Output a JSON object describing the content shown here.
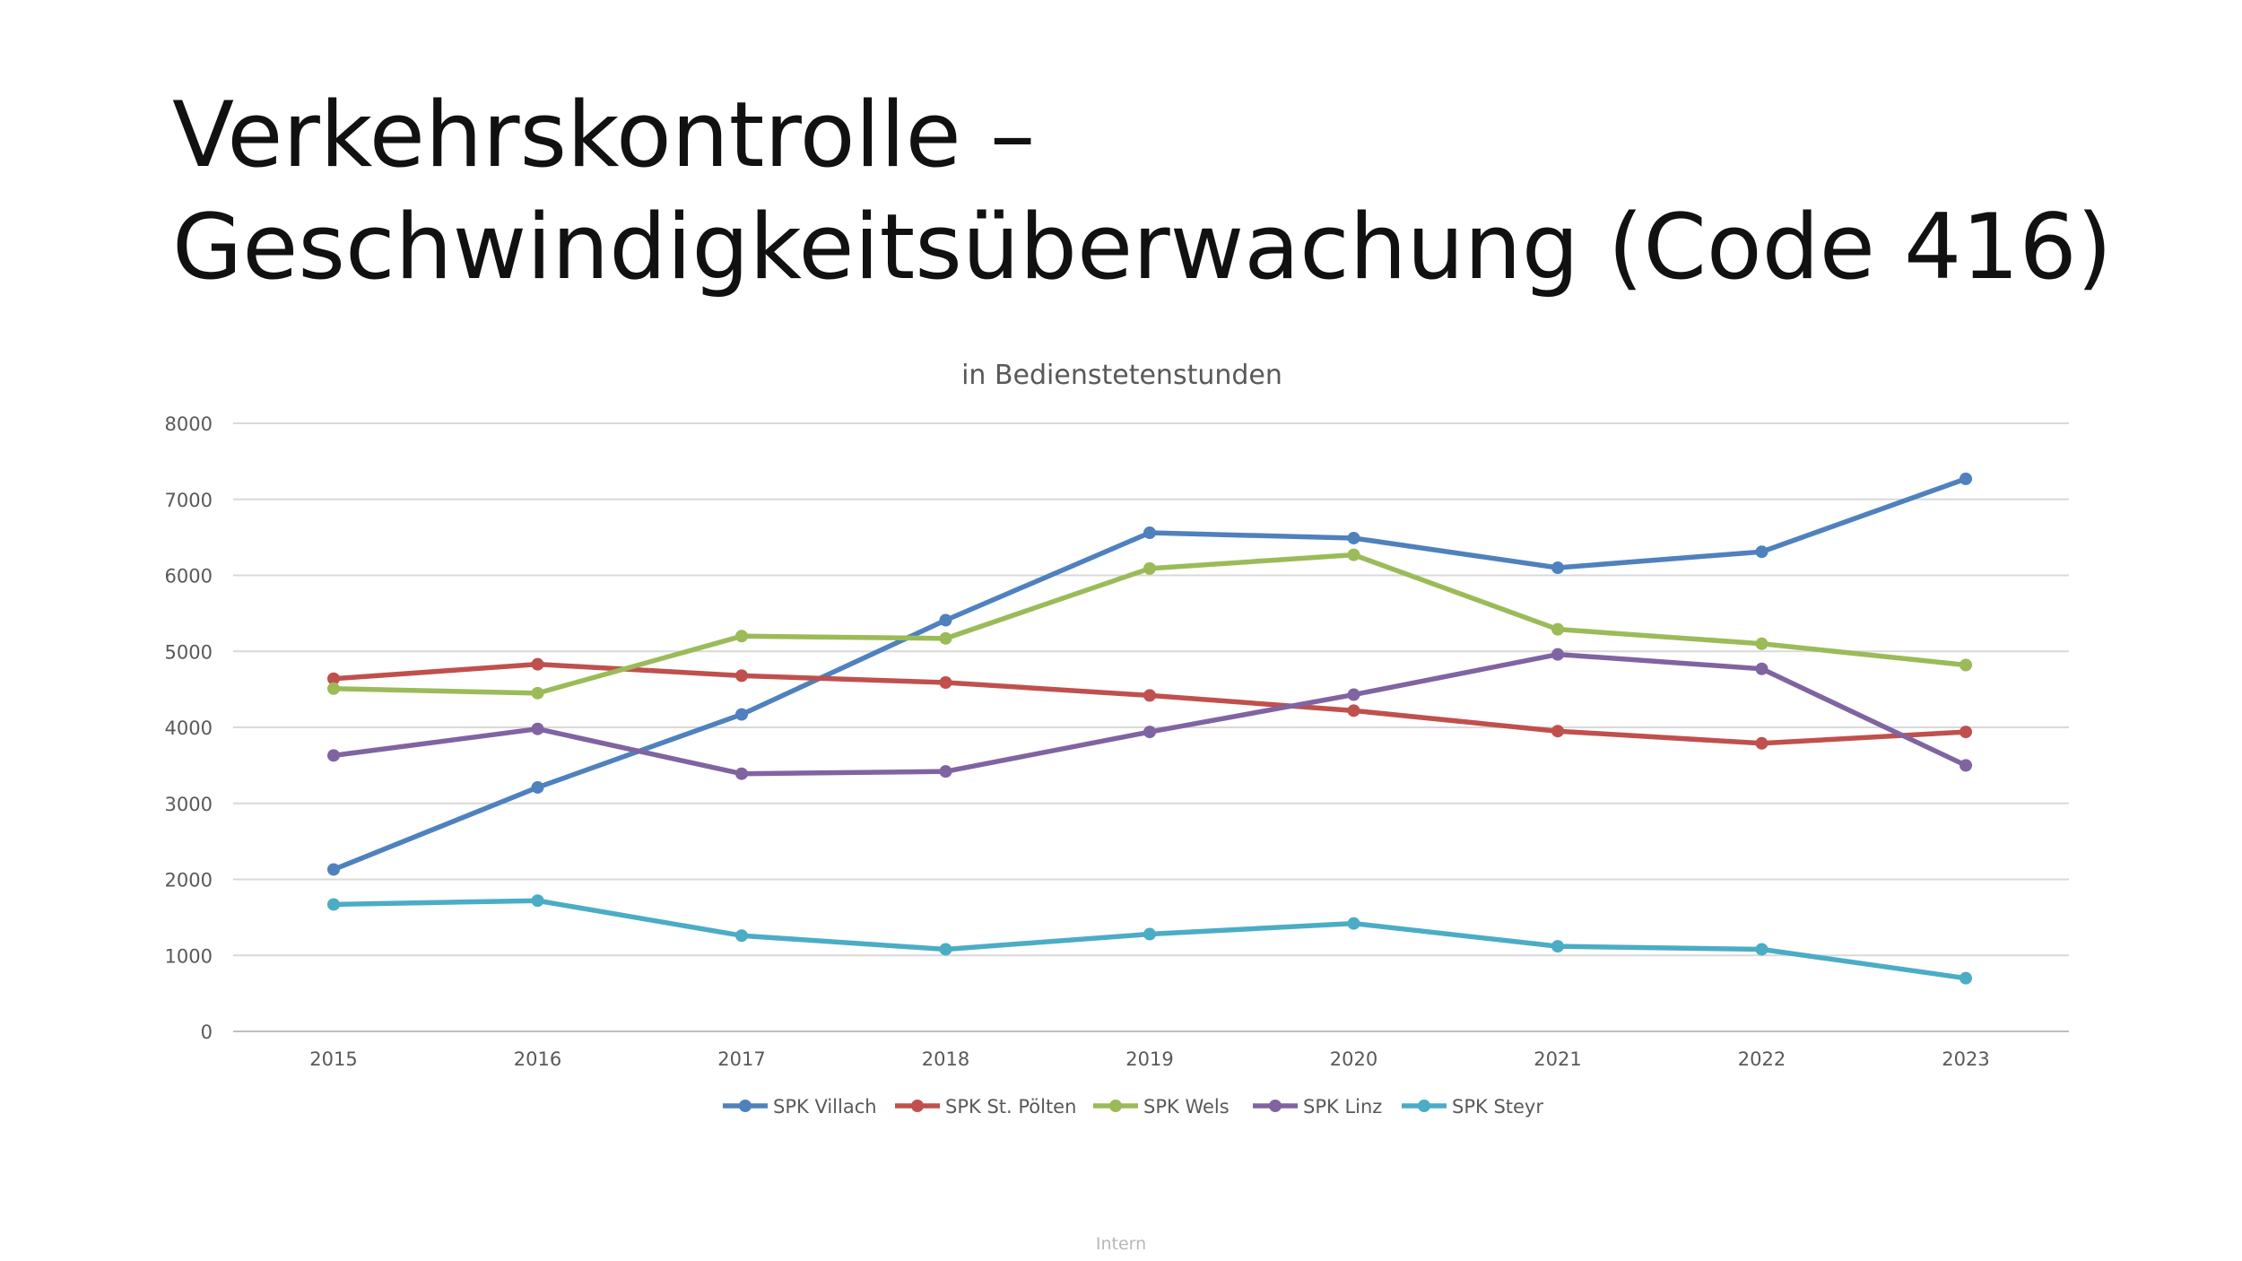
{
  "slide": {
    "title_line1": "Verkehrskontrolle –",
    "title_line2": "Geschwindigkeitsüberwachung (Code 416)",
    "footer": "Intern"
  },
  "chart_data": {
    "type": "line",
    "title": "in Bedienstetenstunden",
    "xlabel": "",
    "ylabel": "",
    "ylim": [
      0,
      8000
    ],
    "y_ticks": [
      0,
      1000,
      2000,
      3000,
      4000,
      5000,
      6000,
      7000,
      8000
    ],
    "grid": true,
    "legend_position": "bottom",
    "categories": [
      "2015",
      "2016",
      "2017",
      "2018",
      "2019",
      "2020",
      "2021",
      "2022",
      "2023"
    ],
    "series": [
      {
        "name": "SPK Villach",
        "color": "#4F81BD",
        "values": [
          2130,
          3210,
          4170,
          5410,
          6560,
          6490,
          6100,
          6310,
          7270
        ]
      },
      {
        "name": "SPK St. Pölten",
        "color": "#C0504D",
        "values": [
          4640,
          4830,
          4680,
          4590,
          4420,
          4220,
          3950,
          3790,
          3940
        ]
      },
      {
        "name": "SPK Wels",
        "color": "#9BBB59",
        "values": [
          4510,
          4450,
          5200,
          5170,
          6090,
          6270,
          5290,
          5100,
          4820
        ]
      },
      {
        "name": "SPK Linz",
        "color": "#8064A2",
        "values": [
          3630,
          3980,
          3390,
          3420,
          3940,
          4430,
          4960,
          4770,
          3500
        ]
      },
      {
        "name": "SPK Steyr",
        "color": "#4BACC6",
        "values": [
          1670,
          1720,
          1260,
          1080,
          1280,
          1420,
          1120,
          1080,
          700
        ]
      }
    ]
  }
}
